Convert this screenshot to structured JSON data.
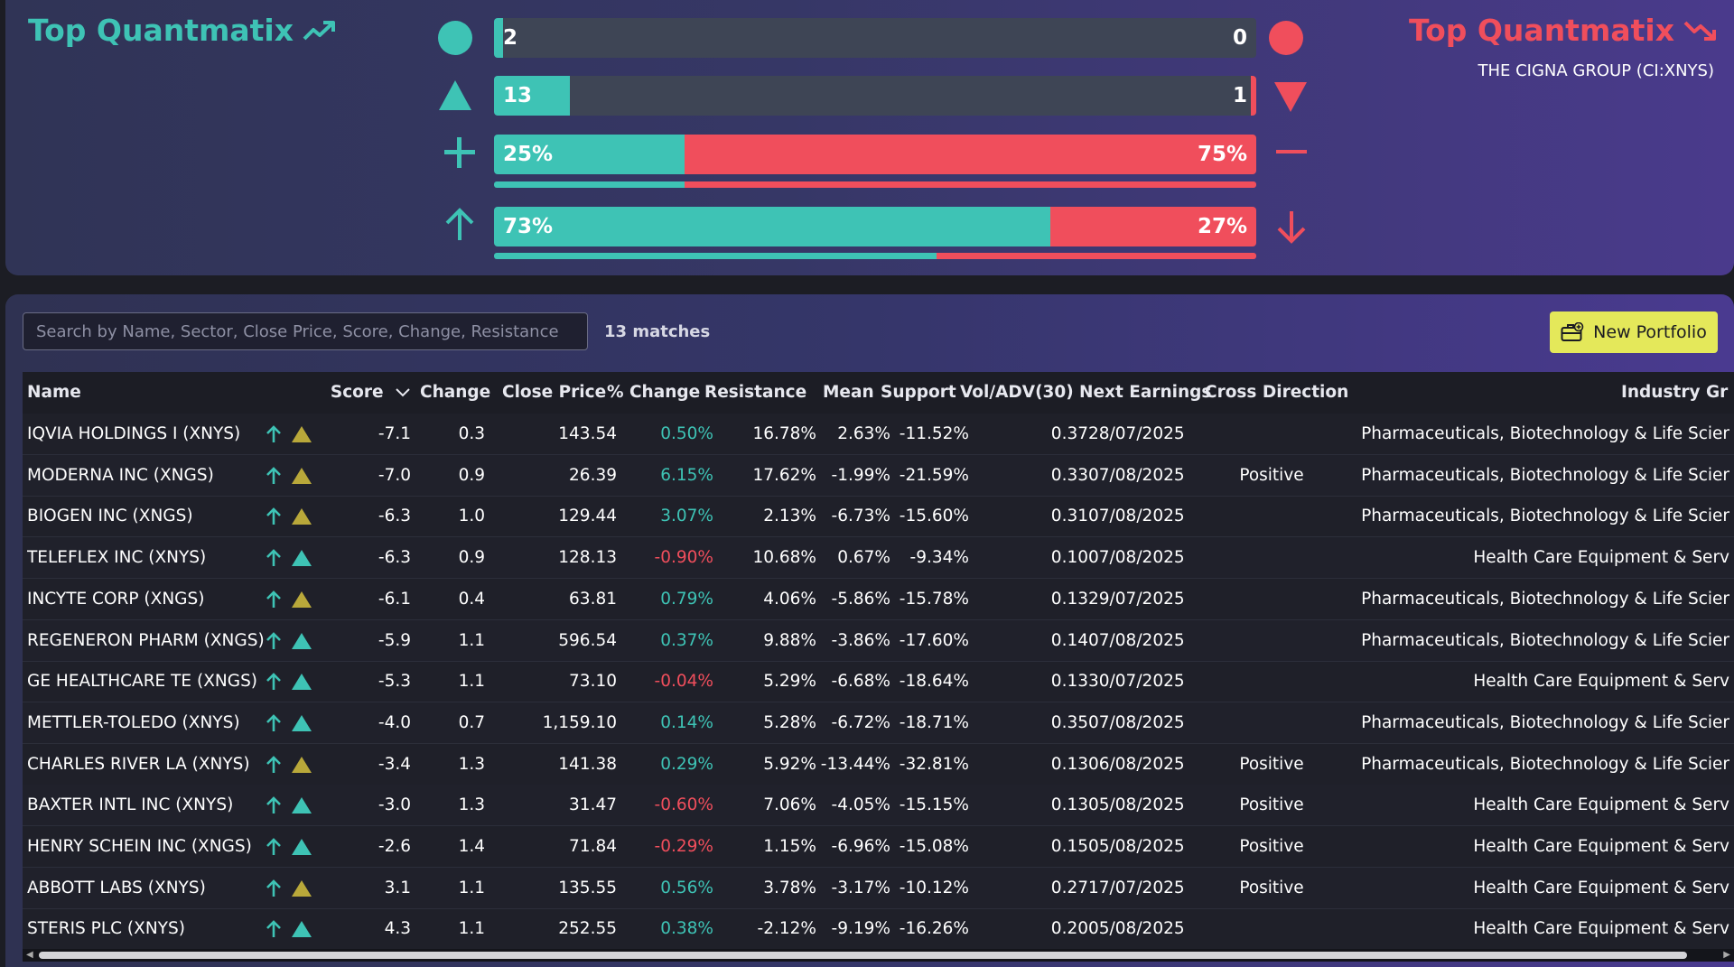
{
  "header": {
    "left_title": "Top Quantmatix",
    "right_title": "Top Quantmatix",
    "company": "THE CIGNA GROUP (CI:XNYS)"
  },
  "summary_bars": [
    {
      "left_icon": "circle-icon",
      "right_icon": "circle-icon",
      "left_label": "2",
      "right_label": "0",
      "left_fraction": 0.012,
      "style": "count"
    },
    {
      "left_icon": "triangle-up-icon",
      "right_icon": "triangle-down-icon",
      "left_label": "13",
      "right_label": "1",
      "left_fraction": 0.1,
      "style": "count"
    },
    {
      "left_icon": "plus-icon",
      "right_icon": "minus-icon",
      "left_label": "25%",
      "right_label": "75%",
      "left_fraction": 0.25,
      "sub_fraction": 0.25,
      "style": "percent"
    },
    {
      "left_icon": "arrow-up-icon",
      "right_icon": "arrow-down-icon",
      "left_label": "73%",
      "right_label": "27%",
      "left_fraction": 0.73,
      "sub_fraction": 0.58,
      "style": "percent"
    }
  ],
  "colors": {
    "accent_teal": "#3ec3b5",
    "accent_red": "#f04e5c",
    "bar_dark": "#3e4555",
    "gold": "#b9a83a",
    "button": "#e4e85a"
  },
  "toolbar": {
    "search_placeholder": "Search by Name, Sector, Close Price, Score, Change, Resistance",
    "matches": "13 matches",
    "new_portfolio": "New Portfolio"
  },
  "table": {
    "headers": {
      "name": "Name",
      "score": "Score",
      "change": "Change",
      "close": "Close Price",
      "pct": "% Change",
      "resistance": "Resistance",
      "mean": "Mean",
      "support": "Support",
      "vol": "Vol/ADV(30)",
      "earnings": "Next Earnings",
      "cross": "Cross Direction",
      "industry": "Industry Gr"
    },
    "rows": [
      {
        "name": "IQVIA HOLDINGS I (XNYS)",
        "tri": "gold",
        "score": "-7.1",
        "change": "0.3",
        "close": "143.54",
        "pct": "0.50%",
        "pct_dir": "pos",
        "resistance": "16.78%",
        "mean": "2.63%",
        "support": "-11.52%",
        "vol": "0.37",
        "earnings": "28/07/2025",
        "cross": "",
        "industry": "Pharmaceuticals, Biotechnology & Life Scier"
      },
      {
        "name": "MODERNA INC (XNGS)",
        "tri": "gold",
        "score": "-7.0",
        "change": "0.9",
        "close": "26.39",
        "pct": "6.15%",
        "pct_dir": "pos",
        "resistance": "17.62%",
        "mean": "-1.99%",
        "support": "-21.59%",
        "vol": "0.33",
        "earnings": "07/08/2025",
        "cross": "Positive",
        "industry": "Pharmaceuticals, Biotechnology & Life Scier"
      },
      {
        "name": "BIOGEN INC (XNGS)",
        "tri": "gold",
        "score": "-6.3",
        "change": "1.0",
        "close": "129.44",
        "pct": "3.07%",
        "pct_dir": "pos",
        "resistance": "2.13%",
        "mean": "-6.73%",
        "support": "-15.60%",
        "vol": "0.31",
        "earnings": "07/08/2025",
        "cross": "",
        "industry": "Pharmaceuticals, Biotechnology & Life Scier"
      },
      {
        "name": "TELEFLEX INC (XNYS)",
        "tri": "teal",
        "score": "-6.3",
        "change": "0.9",
        "close": "128.13",
        "pct": "-0.90%",
        "pct_dir": "neg",
        "resistance": "10.68%",
        "mean": "0.67%",
        "support": "-9.34%",
        "vol": "0.10",
        "earnings": "07/08/2025",
        "cross": "",
        "industry": "Health Care Equipment & Serv"
      },
      {
        "name": "INCYTE CORP (XNGS)",
        "tri": "gold",
        "score": "-6.1",
        "change": "0.4",
        "close": "63.81",
        "pct": "0.79%",
        "pct_dir": "pos",
        "resistance": "4.06%",
        "mean": "-5.86%",
        "support": "-15.78%",
        "vol": "0.13",
        "earnings": "29/07/2025",
        "cross": "",
        "industry": "Pharmaceuticals, Biotechnology & Life Scier"
      },
      {
        "name": "REGENERON PHARM (XNGS)",
        "tri": "teal",
        "score": "-5.9",
        "change": "1.1",
        "close": "596.54",
        "pct": "0.37%",
        "pct_dir": "pos",
        "resistance": "9.88%",
        "mean": "-3.86%",
        "support": "-17.60%",
        "vol": "0.14",
        "earnings": "07/08/2025",
        "cross": "",
        "industry": "Pharmaceuticals, Biotechnology & Life Scier"
      },
      {
        "name": "GE HEALTHCARE TE (XNGS)",
        "tri": "teal",
        "score": "-5.3",
        "change": "1.1",
        "close": "73.10",
        "pct": "-0.04%",
        "pct_dir": "neg",
        "resistance": "5.29%",
        "mean": "-6.68%",
        "support": "-18.64%",
        "vol": "0.13",
        "earnings": "30/07/2025",
        "cross": "",
        "industry": "Health Care Equipment & Serv"
      },
      {
        "name": "METTLER-TOLEDO (XNYS)",
        "tri": "teal",
        "score": "-4.0",
        "change": "0.7",
        "close": "1,159.10",
        "pct": "0.14%",
        "pct_dir": "pos",
        "resistance": "5.28%",
        "mean": "-6.72%",
        "support": "-18.71%",
        "vol": "0.35",
        "earnings": "07/08/2025",
        "cross": "",
        "industry": "Pharmaceuticals, Biotechnology & Life Scier"
      },
      {
        "name": "CHARLES RIVER LA (XNYS)",
        "tri": "gold",
        "score": "-3.4",
        "change": "1.3",
        "close": "141.38",
        "pct": "0.29%",
        "pct_dir": "pos",
        "resistance": "5.92%",
        "mean": "-13.44%",
        "support": "-32.81%",
        "vol": "0.13",
        "earnings": "06/08/2025",
        "cross": "Positive",
        "industry": "Pharmaceuticals, Biotechnology & Life Scier"
      },
      {
        "name": "BAXTER INTL INC (XNYS)",
        "tri": "teal",
        "score": "-3.0",
        "change": "1.3",
        "close": "31.47",
        "pct": "-0.60%",
        "pct_dir": "neg",
        "resistance": "7.06%",
        "mean": "-4.05%",
        "support": "-15.15%",
        "vol": "0.13",
        "earnings": "05/08/2025",
        "cross": "Positive",
        "industry": "Health Care Equipment & Serv"
      },
      {
        "name": "HENRY SCHEIN INC (XNGS)",
        "tri": "teal",
        "score": "-2.6",
        "change": "1.4",
        "close": "71.84",
        "pct": "-0.29%",
        "pct_dir": "neg",
        "resistance": "1.15%",
        "mean": "-6.96%",
        "support": "-15.08%",
        "vol": "0.15",
        "earnings": "05/08/2025",
        "cross": "Positive",
        "industry": "Health Care Equipment & Serv"
      },
      {
        "name": "ABBOTT LABS (XNYS)",
        "tri": "gold",
        "score": "3.1",
        "change": "1.1",
        "close": "135.55",
        "pct": "0.56%",
        "pct_dir": "pos",
        "resistance": "3.78%",
        "mean": "-3.17%",
        "support": "-10.12%",
        "vol": "0.27",
        "earnings": "17/07/2025",
        "cross": "Positive",
        "industry": "Health Care Equipment & Serv"
      },
      {
        "name": "STERIS PLC (XNYS)",
        "tri": "teal",
        "score": "4.3",
        "change": "1.1",
        "close": "252.55",
        "pct": "0.38%",
        "pct_dir": "pos",
        "resistance": "-2.12%",
        "mean": "-9.19%",
        "support": "-16.26%",
        "vol": "0.20",
        "earnings": "05/08/2025",
        "cross": "",
        "industry": "Health Care Equipment & Serv"
      }
    ]
  }
}
